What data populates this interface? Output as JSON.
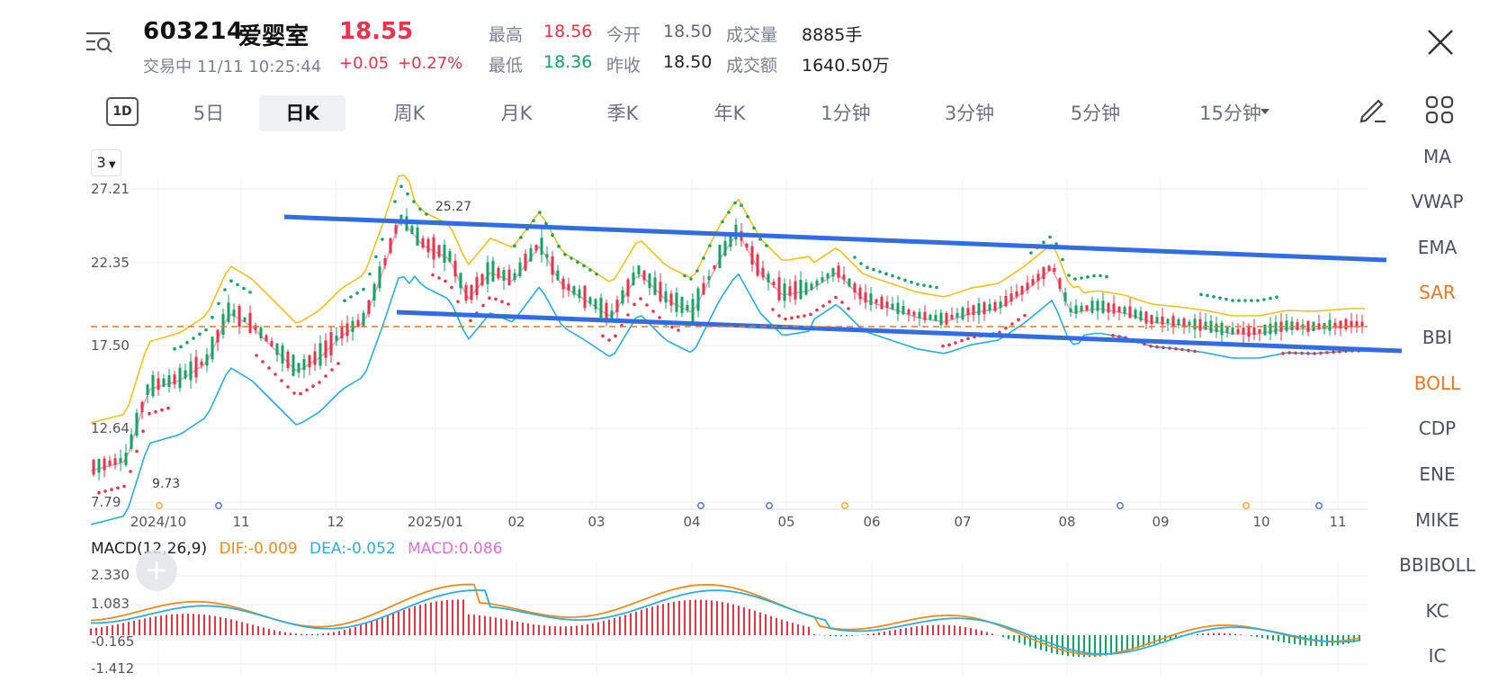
{
  "header": {
    "code": "603214",
    "name": "爱婴室",
    "price": "18.55",
    "status_time": "交易中 11/11 10:25:44",
    "change_abs": "+0.05",
    "change_pct": "+0.27%",
    "quote": {
      "high_label": "最高",
      "high": "18.56",
      "open_label": "今开",
      "open": "18.50",
      "volume_label": "成交量",
      "volume": "8885手",
      "low_label": "最低",
      "low": "18.36",
      "prev_close_label": "昨收",
      "prev_close": "18.50",
      "turnover_label": "成交额",
      "turnover": "1640.50万"
    }
  },
  "tabs": [
    "1D",
    "5日",
    "日K",
    "周K",
    "月K",
    "季K",
    "年K",
    "1分钟",
    "3分钟",
    "5分钟",
    "15分钟"
  ],
  "active_tab": "日K",
  "indicators": [
    "MA",
    "VWAP",
    "EMA",
    "SAR",
    "BBI",
    "BOLL",
    "CDP",
    "ENE",
    "MIKE",
    "BBIBOLL",
    "KC",
    "IC"
  ],
  "active_indicators": [
    "SAR",
    "BOLL"
  ],
  "period_select": "3",
  "colors": {
    "up": "#e8334a",
    "down": "#11a463",
    "trend_line": "#2f6ce5",
    "upper_band": "#f3c21b",
    "lower_band": "#27aee0",
    "mid_band": "#f2a3c0",
    "sar": "#e8334a",
    "macd_dif": "#f28a1e",
    "macd_dea": "#2aaee0",
    "accent": "#ef7722"
  },
  "chart_data": [
    {
      "type": "candlestick",
      "y_ticks": [
        "27.21",
        "22.35",
        "17.50",
        "12.64",
        "7.79"
      ],
      "ylim": [
        7.79,
        27.21
      ],
      "x_ticks": [
        "2024/10",
        "11",
        "12",
        "2025/01",
        "02",
        "03",
        "04",
        "05",
        "06",
        "07",
        "08",
        "09",
        "10",
        "11"
      ],
      "annotations": {
        "high_label": "25.27",
        "low_label": "9.73"
      },
      "reference_line": 18.55
    },
    {
      "type": "line",
      "title": "MACD(12,26,9)",
      "dif_label": "DIF:-0.009",
      "dea_label": "DEA:-0.052",
      "macd_label": "MACD:0.086",
      "y_ticks": [
        "2.330",
        "1.083",
        "-0.165",
        "-1.412"
      ],
      "ylim": [
        -1.412,
        2.33
      ]
    }
  ]
}
